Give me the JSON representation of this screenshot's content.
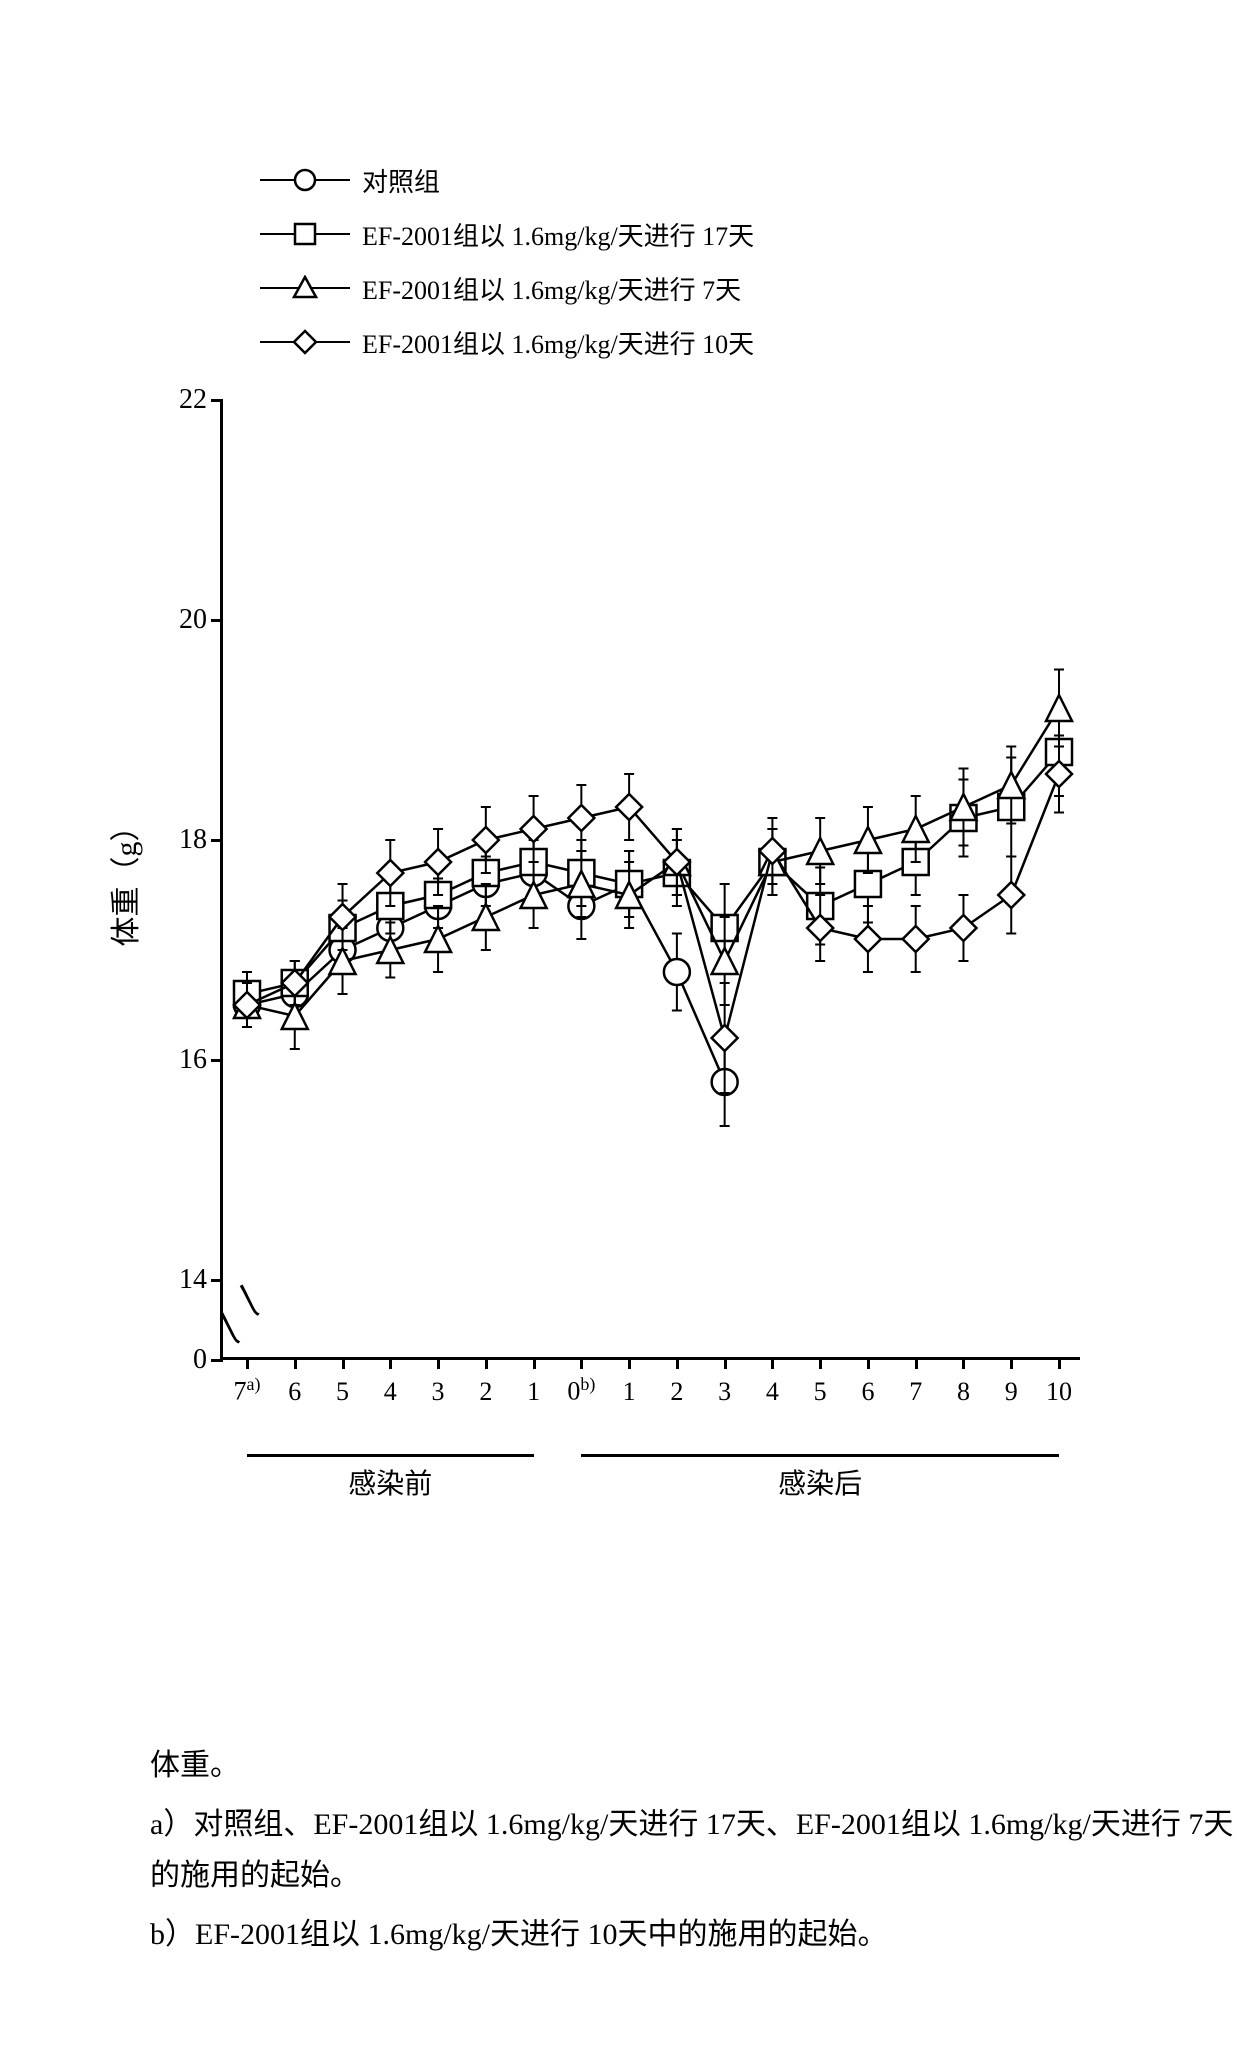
{
  "chart": {
    "type": "line",
    "title": "",
    "ylabel": "体重（g）",
    "ylim": [
      0,
      22
    ],
    "yticks": [
      0,
      14,
      16,
      18,
      20,
      22
    ],
    "y_break": [
      0.5,
      13.5
    ],
    "x_categories": [
      "7ᵃ⁾",
      "6",
      "5",
      "4",
      "3",
      "2",
      "1",
      "0ᵇ⁾",
      "1",
      "2",
      "3",
      "4",
      "5",
      "6",
      "7",
      "8",
      "9",
      "10"
    ],
    "x_plain": [
      "7",
      "6",
      "5",
      "4",
      "3",
      "2",
      "1",
      "0",
      "1",
      "2",
      "3",
      "4",
      "5",
      "6",
      "7",
      "8",
      "9",
      "10"
    ],
    "x_superscripts": {
      "0": "a)",
      "7": "b)"
    },
    "phases": [
      {
        "label": "感染前",
        "from_idx": 0,
        "to_idx": 6
      },
      {
        "label": "感染后",
        "from_idx": 7,
        "to_idx": 17
      }
    ],
    "background_color": "#ffffff",
    "axis_color": "#000000",
    "label_fontsize": 28,
    "tick_fontsize": 26,
    "line_width": 2.5,
    "marker_size": 13,
    "error_cap_width": 10,
    "series": [
      {
        "name": "对照组",
        "marker": "circle",
        "color": "#000000",
        "fill": "#ffffff",
        "y": [
          16.5,
          16.6,
          17.0,
          17.2,
          17.4,
          17.6,
          17.7,
          17.4,
          17.6,
          16.8,
          15.8,
          null,
          null,
          null,
          null,
          null,
          null,
          null
        ],
        "err": [
          0.2,
          0.2,
          0.2,
          0.25,
          0.25,
          0.25,
          0.3,
          0.3,
          0.3,
          0.35,
          0.4,
          null,
          null,
          null,
          null,
          null,
          null,
          null
        ]
      },
      {
        "name": "EF-2001组以 1.6mg/kg/天进行 17天",
        "marker": "square",
        "color": "#000000",
        "fill": "#ffffff",
        "y": [
          16.6,
          16.7,
          17.2,
          17.4,
          17.5,
          17.7,
          17.8,
          17.7,
          17.6,
          17.7,
          17.2,
          17.8,
          17.4,
          17.6,
          17.8,
          18.2,
          18.3,
          18.8
        ],
        "err": [
          0.2,
          0.2,
          0.25,
          0.25,
          0.3,
          0.3,
          0.3,
          0.3,
          0.3,
          0.3,
          0.4,
          0.3,
          0.35,
          0.35,
          0.3,
          0.35,
          0.45,
          0.4
        ]
      },
      {
        "name": "EF-2001组以 1.6mg/kg/天进行 7天",
        "marker": "triangle",
        "color": "#000000",
        "fill": "#ffffff",
        "y": [
          16.5,
          16.4,
          16.9,
          17.0,
          17.1,
          17.3,
          17.5,
          17.6,
          17.5,
          17.8,
          16.9,
          17.8,
          17.9,
          18.0,
          18.1,
          18.3,
          18.5,
          19.2
        ],
        "err": [
          0.2,
          0.3,
          0.3,
          0.25,
          0.3,
          0.3,
          0.3,
          0.3,
          0.3,
          0.3,
          0.4,
          0.3,
          0.3,
          0.3,
          0.3,
          0.35,
          0.35,
          0.35
        ]
      },
      {
        "name": "EF-2001组以 1.6mg/kg/天进行 10天",
        "marker": "diamond",
        "color": "#000000",
        "fill": "#ffffff",
        "y": [
          16.5,
          16.7,
          17.3,
          17.7,
          17.8,
          18.0,
          18.1,
          18.2,
          18.3,
          17.8,
          16.2,
          17.9,
          17.2,
          17.1,
          17.1,
          17.2,
          17.5,
          18.6
        ],
        "err": [
          0.2,
          0.2,
          0.3,
          0.3,
          0.3,
          0.3,
          0.3,
          0.3,
          0.3,
          0.3,
          0.5,
          0.3,
          0.3,
          0.3,
          0.3,
          0.3,
          0.35,
          0.35
        ]
      }
    ]
  },
  "caption": {
    "title": "体重。",
    "note_a": "a）对照组、EF-2001组以 1.6mg/kg/天进行 17天、EF-2001组以 1.6mg/kg/天进行 7天的施用的起始。",
    "note_b": "b）EF-2001组以 1.6mg/kg/天进行 10天中的施用的起始。"
  }
}
